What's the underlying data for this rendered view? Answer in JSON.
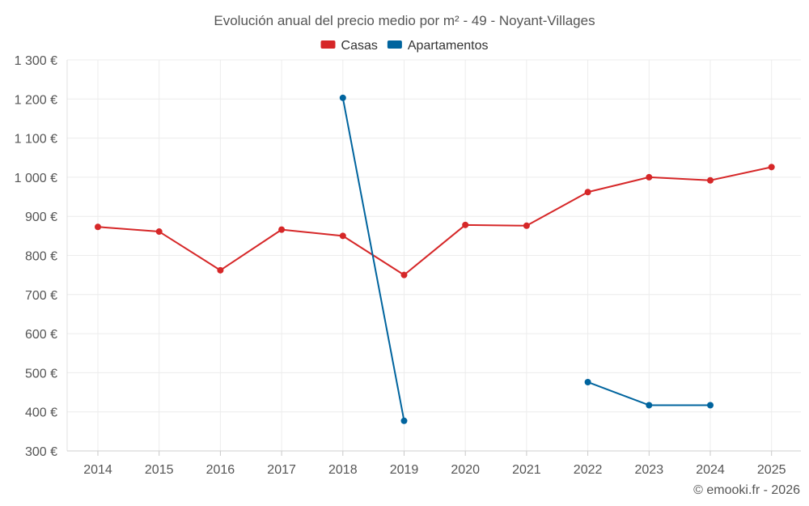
{
  "chart_data": {
    "type": "line",
    "title": "Evolución anual del precio medio por m² - 49 - Noyant-Villages",
    "categories": [
      "2014",
      "2015",
      "2016",
      "2017",
      "2018",
      "2019",
      "2020",
      "2021",
      "2022",
      "2023",
      "2024",
      "2025"
    ],
    "series": [
      {
        "name": "Casas",
        "color": "#d62728",
        "values": [
          873,
          861,
          762,
          866,
          850,
          750,
          878,
          876,
          962,
          1000,
          992,
          1026
        ]
      },
      {
        "name": "Apartamentos",
        "color": "#00649e",
        "values": [
          null,
          null,
          null,
          null,
          1203,
          377,
          null,
          null,
          476,
          417,
          417,
          null
        ]
      }
    ],
    "ylim": [
      300,
      1300
    ],
    "yticks": [
      300,
      400,
      500,
      600,
      700,
      800,
      900,
      1000,
      1100,
      1200,
      1300
    ],
    "ytick_labels": [
      "300 €",
      "400 €",
      "500 €",
      "600 €",
      "700 €",
      "800 €",
      "900 €",
      "1 000 €",
      "1 100 €",
      "1 200 €",
      "1 300 €"
    ],
    "grid": true,
    "legend_position": "top-center",
    "xlabel": "",
    "ylabel": ""
  },
  "credit": "© emooki.fr - 2026"
}
